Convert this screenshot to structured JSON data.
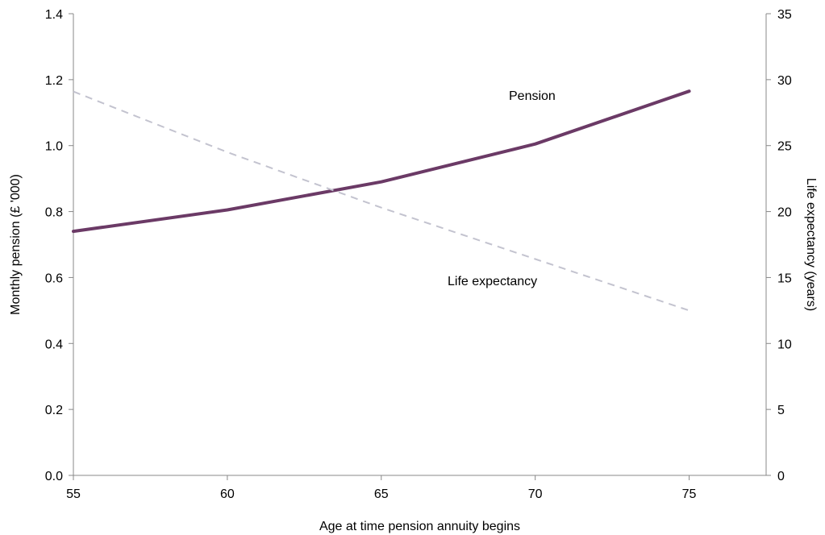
{
  "chart_data": {
    "type": "line",
    "xlabel": "Age at time pension annuity begins",
    "ylabel": "Monthly pension (£ '000)",
    "y2label": "Life expectancy (years)",
    "xlim": [
      55,
      77.5
    ],
    "ylim": [
      0,
      1.4
    ],
    "y2lim": [
      0,
      35
    ],
    "x_ticks": [
      55,
      60,
      65,
      70,
      75
    ],
    "y_ticks": [
      0.0,
      0.2,
      0.4,
      0.6,
      0.8,
      1.0,
      1.2,
      1.4
    ],
    "y_tick_labels": [
      "0.0",
      "0.2",
      "0.4",
      "0.6",
      "0.8",
      "1.0",
      "1.2",
      "1.4"
    ],
    "y2_ticks": [
      0,
      5,
      10,
      15,
      20,
      25,
      30,
      35
    ],
    "grid": false,
    "legend": "none",
    "series": [
      {
        "name": "Pension",
        "axis": "left",
        "color": "#6b3a66",
        "style": "solid",
        "x": [
          55,
          60,
          65,
          70,
          75
        ],
        "values": [
          0.74,
          0.805,
          0.89,
          1.005,
          1.165
        ]
      },
      {
        "name": "Life expectancy",
        "axis": "right",
        "color": "#c3c3cf",
        "style": "dashed",
        "x": [
          55,
          60,
          65,
          70,
          75
        ],
        "values": [
          29.1,
          24.5,
          20.3,
          16.4,
          12.5
        ]
      }
    ]
  }
}
